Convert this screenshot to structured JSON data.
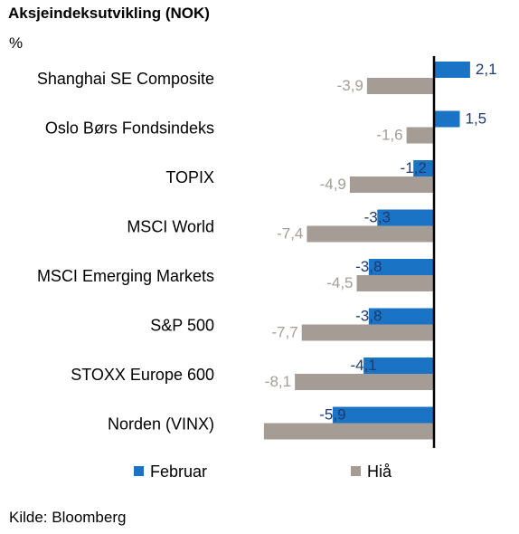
{
  "title": "Aksjeindeksutvikling (NOK)",
  "unit": "%",
  "source": "Kilde: Bloomberg",
  "colors": {
    "februar": "#1a73c4",
    "hia": "#a59d95",
    "feb_label": "#1f3a6e",
    "hia_label": "#a59d95",
    "axis": "#000000"
  },
  "chart_data": {
    "type": "bar",
    "orientation": "horizontal",
    "categories": [
      "Shanghai SE Composite",
      "Oslo Børs Fondsindeks",
      "TOPIX",
      "MSCI World",
      "MSCI Emerging Markets",
      "S&P 500",
      "STOXX Europe 600",
      "Norden (VINX)"
    ],
    "series": [
      {
        "name": "Februar",
        "values": [
          2.1,
          1.5,
          -1.2,
          -3.3,
          -3.8,
          -3.8,
          -4.1,
          -5.9
        ],
        "labels": [
          "2,1",
          "1,5",
          "-1,2",
          "-3,3",
          "-3,8",
          "-3,8",
          "-4,1",
          "-5,9"
        ]
      },
      {
        "name": "Hiå",
        "values": [
          -3.9,
          -1.6,
          -4.9,
          -7.4,
          -4.5,
          -7.7,
          -8.1,
          -9.9
        ],
        "labels": [
          "-3,9",
          "-1,6",
          "-4,9",
          "-7,4",
          "-4,5",
          "-7,7",
          "-8,1",
          ""
        ]
      }
    ],
    "legend_position": "bottom"
  }
}
